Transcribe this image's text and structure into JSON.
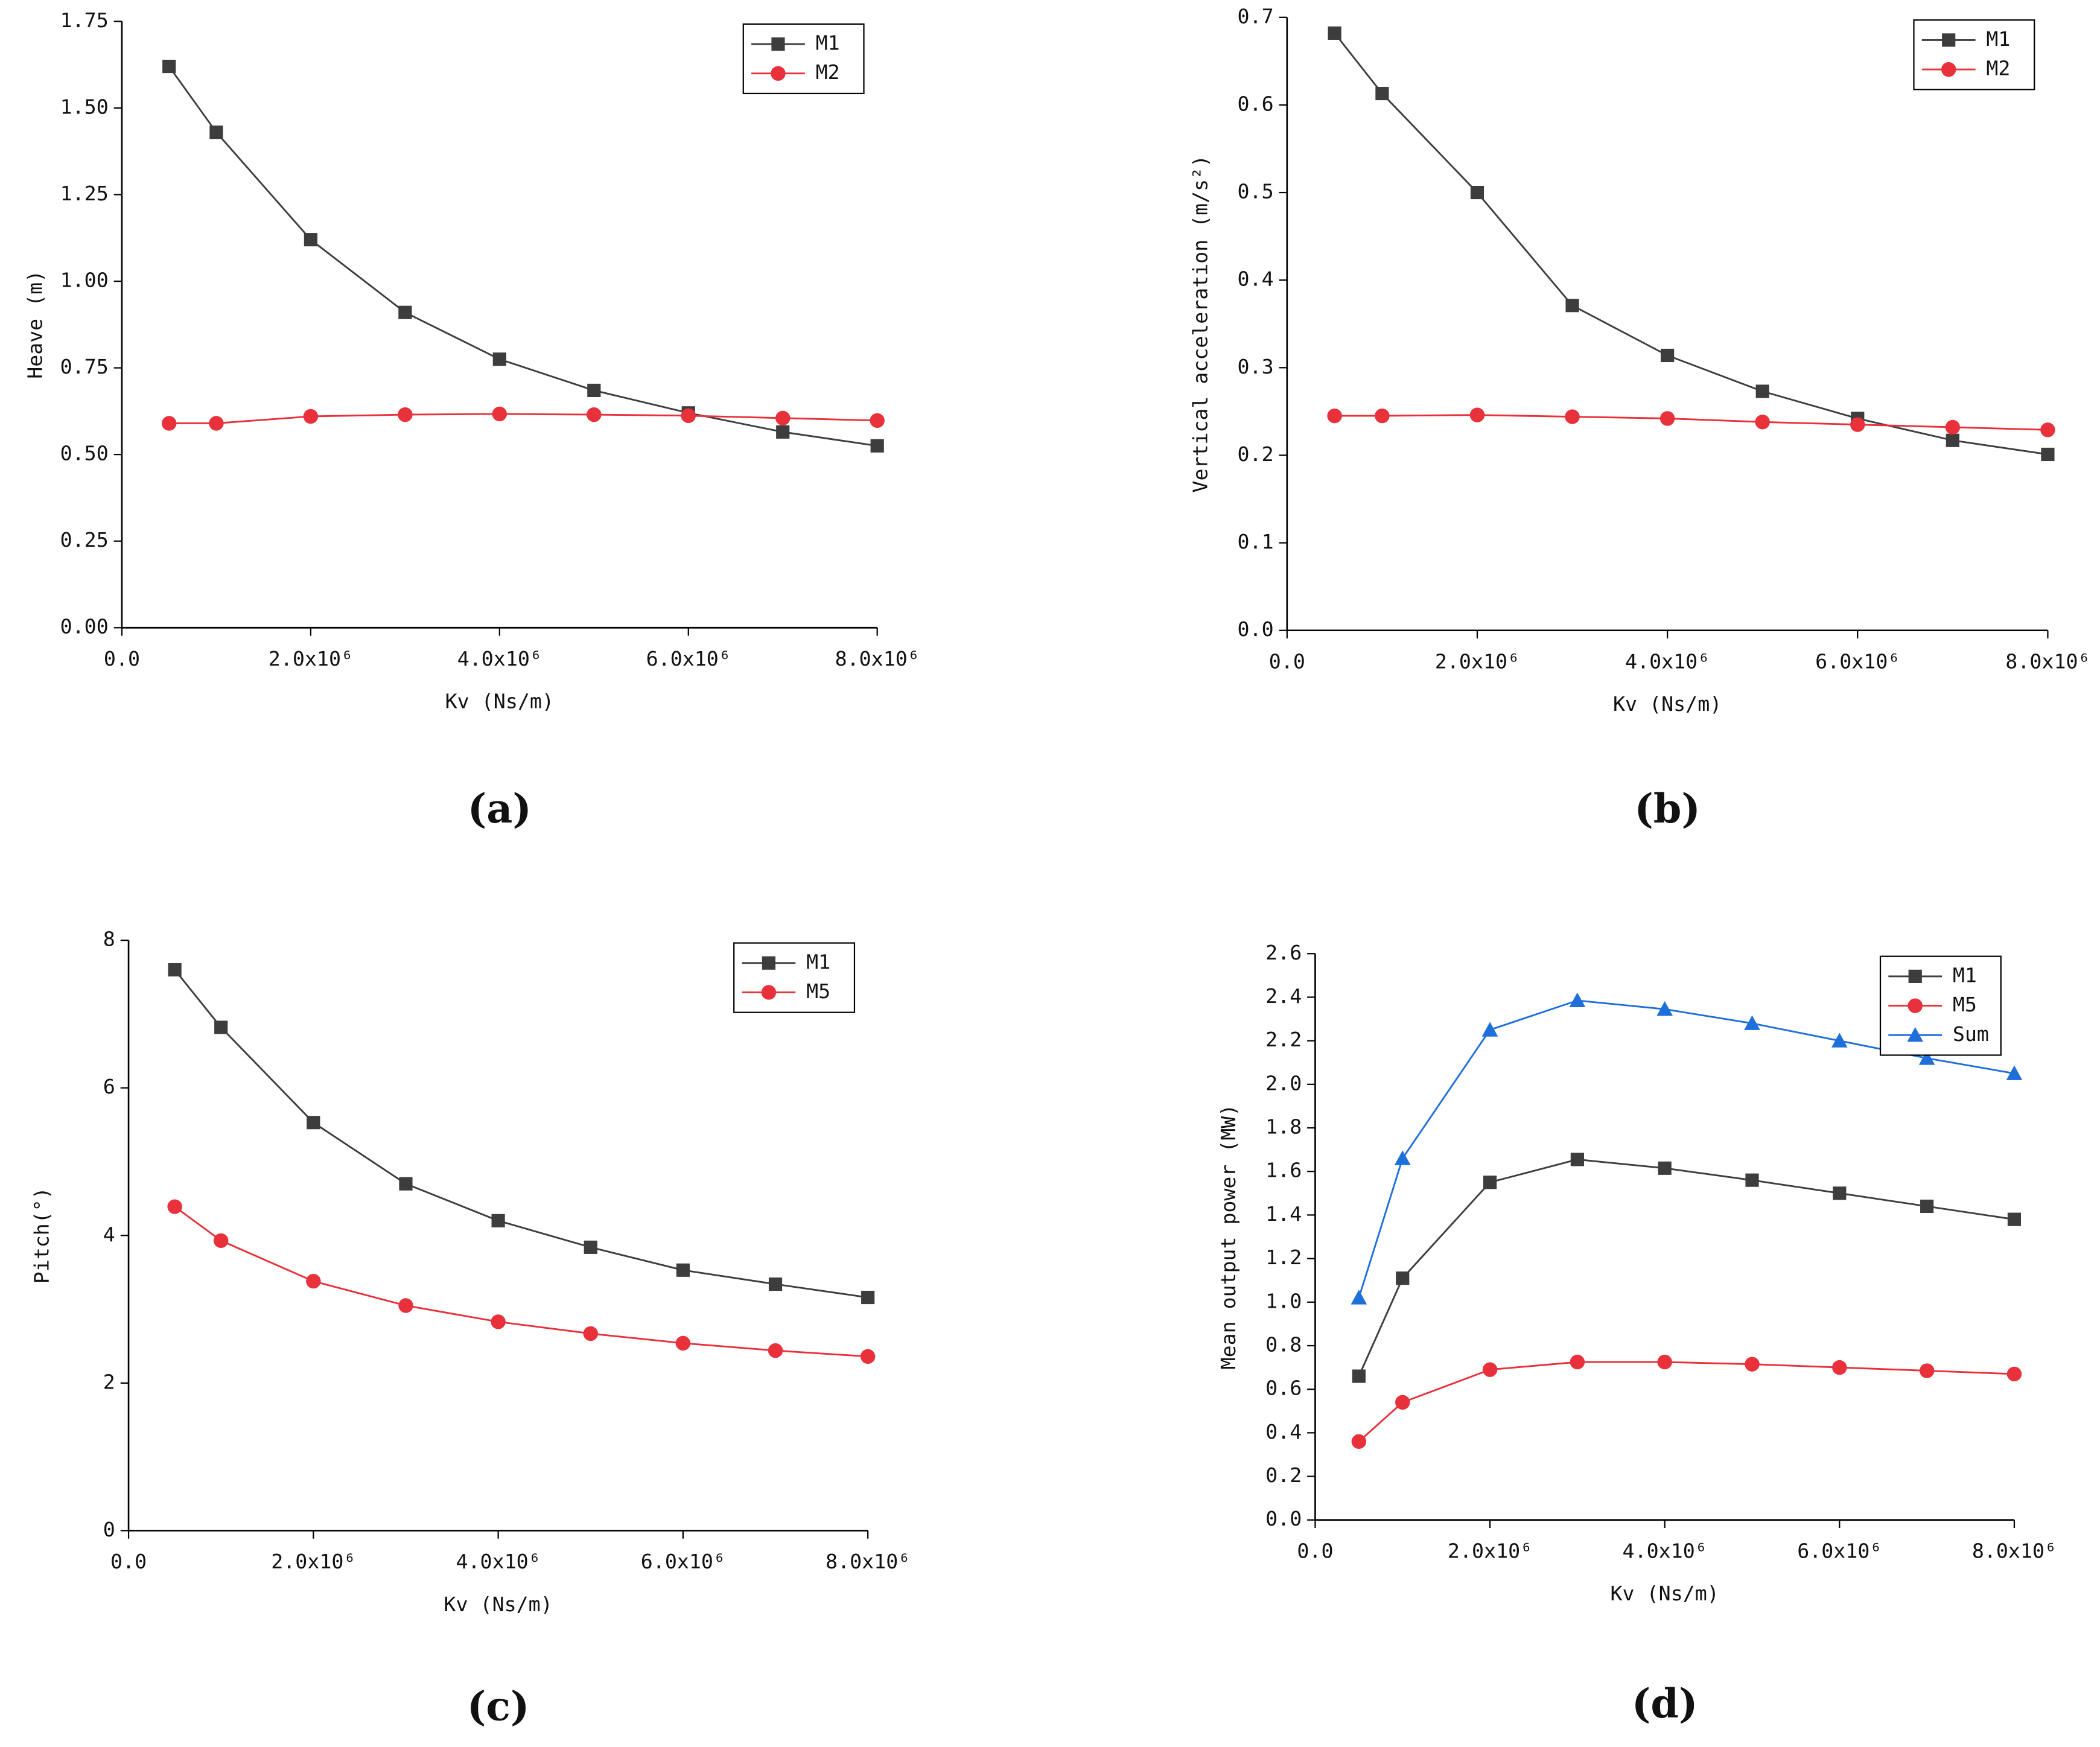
{
  "chart_data": [
    {
      "type": "line",
      "panel_label": "(a)",
      "xlabel": "Kv (Ns/m)",
      "ylabel": "Heave (m)",
      "x": [
        500000,
        1000000,
        2000000,
        3000000,
        4000000,
        5000000,
        6000000,
        7000000,
        8000000
      ],
      "xlim": [
        0,
        8000000
      ],
      "xticks": [
        {
          "value": 0,
          "label": "0.0"
        },
        {
          "value": 2000000,
          "label": "2.0x10⁶"
        },
        {
          "value": 4000000,
          "label": "4.0x10⁶"
        },
        {
          "value": 6000000,
          "label": "6.0x10⁶"
        },
        {
          "value": 8000000,
          "label": "8.0x10⁶"
        }
      ],
      "ylim": [
        0,
        1.75
      ],
      "yticks": [
        {
          "value": 0,
          "label": "0.00"
        },
        0.25,
        {
          "value": 0.5,
          "label": "0.50"
        },
        0.75,
        {
          "value": 1,
          "label": "1.00"
        },
        1.25,
        {
          "value": 1.5,
          "label": "1.50"
        },
        1.75
      ],
      "legend": "upper right",
      "series": [
        {
          "name": "M1",
          "color": "#3d3d3d",
          "marker": "square",
          "values": [
            1.62,
            1.43,
            1.12,
            0.91,
            0.775,
            0.685,
            0.62,
            0.565,
            0.525
          ]
        },
        {
          "name": "M2",
          "color": "#e8313a",
          "marker": "circle",
          "values": [
            0.59,
            0.59,
            0.61,
            0.615,
            0.617,
            0.615,
            0.612,
            0.605,
            0.598
          ]
        }
      ]
    },
    {
      "type": "line",
      "panel_label": "(b)",
      "xlabel": "Kv (Ns/m)",
      "ylabel": "Vertical acceleration (m/s²)",
      "x": [
        500000,
        1000000,
        2000000,
        3000000,
        4000000,
        5000000,
        6000000,
        7000000,
        8000000
      ],
      "xlim": [
        0,
        8000000
      ],
      "xticks": [
        {
          "value": 0,
          "label": "0.0"
        },
        {
          "value": 2000000,
          "label": "2.0x10⁶"
        },
        {
          "value": 4000000,
          "label": "4.0x10⁶"
        },
        {
          "value": 6000000,
          "label": "6.0x10⁶"
        },
        {
          "value": 8000000,
          "label": "8.0x10⁶"
        }
      ],
      "ylim": [
        0,
        0.7
      ],
      "yticks": [
        {
          "value": 0,
          "label": "0.0"
        },
        0.1,
        0.2,
        0.3,
        0.4,
        0.5,
        0.6,
        0.7
      ],
      "legend": "upper right",
      "series": [
        {
          "name": "M1",
          "color": "#3d3d3d",
          "marker": "square",
          "values": [
            0.682,
            0.613,
            0.5,
            0.371,
            0.314,
            0.273,
            0.242,
            0.217,
            0.201
          ]
        },
        {
          "name": "M2",
          "color": "#e8313a",
          "marker": "circle",
          "values": [
            0.245,
            0.245,
            0.246,
            0.244,
            0.242,
            0.238,
            0.235,
            0.232,
            0.229
          ]
        }
      ]
    },
    {
      "type": "line",
      "panel_label": "(c)",
      "xlabel": "Kv (Ns/m)",
      "ylabel": "Pitch(°)",
      "x": [
        500000,
        1000000,
        2000000,
        3000000,
        4000000,
        5000000,
        6000000,
        7000000,
        8000000
      ],
      "xlim": [
        0,
        8000000
      ],
      "xticks": [
        {
          "value": 0,
          "label": "0.0"
        },
        {
          "value": 2000000,
          "label": "2.0x10⁶"
        },
        {
          "value": 4000000,
          "label": "4.0x10⁶"
        },
        {
          "value": 6000000,
          "label": "6.0x10⁶"
        },
        {
          "value": 8000000,
          "label": "8.0x10⁶"
        }
      ],
      "ylim": [
        0,
        8
      ],
      "yticks": [
        0,
        2,
        4,
        6,
        8
      ],
      "legend": "upper right",
      "series": [
        {
          "name": "M1",
          "color": "#3d3d3d",
          "marker": "square",
          "values": [
            7.6,
            6.82,
            5.53,
            4.7,
            4.2,
            3.84,
            3.53,
            3.34,
            3.16
          ]
        },
        {
          "name": "M5",
          "color": "#e8313a",
          "marker": "circle",
          "values": [
            4.39,
            3.93,
            3.38,
            3.05,
            2.83,
            2.67,
            2.54,
            2.44,
            2.36
          ]
        }
      ]
    },
    {
      "type": "line",
      "panel_label": "(d)",
      "xlabel": "Kv (Ns/m)",
      "ylabel": "Mean output power (MW)",
      "x": [
        500000,
        1000000,
        2000000,
        3000000,
        4000000,
        5000000,
        6000000,
        7000000,
        8000000
      ],
      "xlim": [
        0,
        8000000
      ],
      "xticks": [
        {
          "value": 0,
          "label": "0.0"
        },
        {
          "value": 2000000,
          "label": "2.0x10⁶"
        },
        {
          "value": 4000000,
          "label": "4.0x10⁶"
        },
        {
          "value": 6000000,
          "label": "6.0x10⁶"
        },
        {
          "value": 8000000,
          "label": "8.0x10⁶"
        }
      ],
      "ylim": [
        0,
        2.6
      ],
      "yticks": [
        {
          "value": 0,
          "label": "0.0"
        },
        0.2,
        0.4,
        0.6,
        0.8,
        {
          "value": 1,
          "label": "1.0"
        },
        1.2,
        1.4,
        1.6,
        1.8,
        {
          "value": 2,
          "label": "2.0"
        },
        2.2,
        2.4,
        2.6
      ],
      "legend": "upper right",
      "series": [
        {
          "name": "M1",
          "color": "#3d3d3d",
          "marker": "square",
          "values": [
            0.66,
            1.11,
            1.55,
            1.655,
            1.615,
            1.56,
            1.5,
            1.44,
            1.38
          ]
        },
        {
          "name": "M5",
          "color": "#e8313a",
          "marker": "circle",
          "values": [
            0.36,
            0.54,
            0.69,
            0.725,
            0.725,
            0.715,
            0.7,
            0.685,
            0.67
          ]
        },
        {
          "name": "Sum",
          "color": "#1f6fdb",
          "marker": "triangle",
          "values": [
            1.02,
            1.66,
            2.25,
            2.385,
            2.345,
            2.28,
            2.2,
            2.12,
            2.05
          ]
        }
      ]
    }
  ]
}
